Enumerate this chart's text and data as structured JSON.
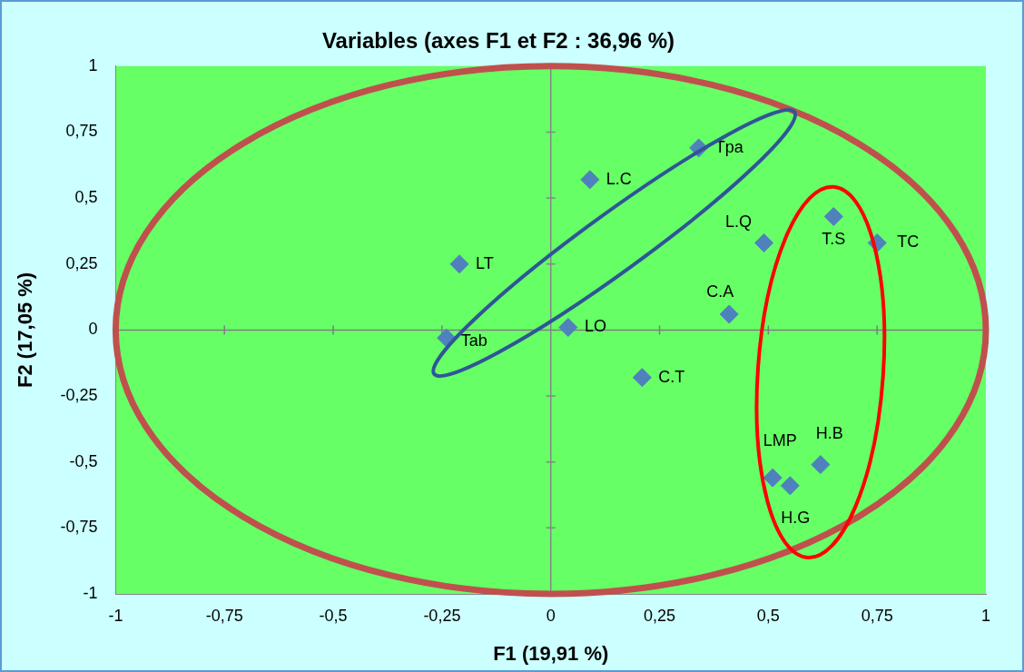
{
  "chart_data": {
    "type": "scatter",
    "title": "Variables (axes F1 et F2 : 36,96 %)",
    "xlabel": "F1 (19,91 %)",
    "ylabel": "F2 (17,05 %)",
    "x": [
      0.34,
      0.09,
      -0.21,
      -0.24,
      0.04,
      0.21,
      0.41,
      0.49,
      0.65,
      0.75,
      0.62,
      0.51,
      0.55
    ],
    "series": [
      {
        "color": "#4f81bd",
        "values": [
          0.69,
          0.57,
          0.25,
          -0.03,
          0.01,
          -0.18,
          0.06,
          0.33,
          0.43,
          0.33,
          -0.51,
          -0.56,
          -0.59
        ],
        "value_labels": [
          "Tpa",
          "L.C",
          "LT",
          "Tab",
          "LO",
          "C.T",
          "C.A",
          "L.Q",
          "T.S",
          "TC",
          "H.B",
          "LMP",
          "H.G"
        ]
      }
    ],
    "xlim": [
      -1,
      1
    ],
    "xticks": [
      -1,
      {
        "value": -0.75,
        "label": "-0,75"
      },
      {
        "value": -0.5,
        "label": "-0,5"
      },
      {
        "value": -0.25,
        "label": "-0,25"
      },
      0,
      {
        "value": 0.25,
        "label": "0,25"
      },
      {
        "value": 0.5,
        "label": "0,5"
      },
      {
        "value": 0.75,
        "label": "0,75"
      },
      1
    ],
    "ylim": [
      -1,
      1
    ],
    "yticks": [
      -1,
      {
        "value": -0.75,
        "label": "-0,75"
      },
      {
        "value": -0.5,
        "label": "-0,5"
      },
      {
        "value": -0.25,
        "label": "-0,25"
      },
      0,
      {
        "value": 0.25,
        "label": "0,25"
      },
      {
        "value": 0.5,
        "label": "0,5"
      },
      {
        "value": 0.75,
        "label": "0,75"
      },
      1
    ],
    "ref_lines": [
      {
        "axis": "x",
        "value": 0,
        "color": "#868686"
      },
      {
        "axis": "y",
        "value": 0,
        "color": "#7f7f7f"
      }
    ],
    "marker": "diamond",
    "grid": false,
    "legend": false
  }
}
